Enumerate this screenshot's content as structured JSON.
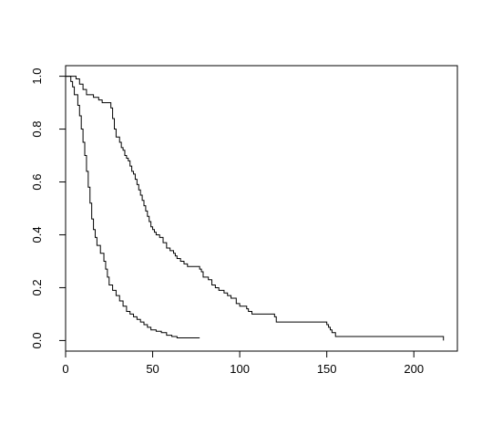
{
  "chart_data": {
    "type": "line",
    "title": "",
    "xlabel": "",
    "ylabel": "",
    "xlim": [
      0,
      225
    ],
    "ylim": [
      -0.04,
      1.04
    ],
    "x_ticks": [
      0,
      50,
      100,
      150,
      200
    ],
    "y_ticks": [
      0.0,
      0.2,
      0.4,
      0.6,
      0.8,
      1.0
    ],
    "x_tick_labels": [
      "0",
      "50",
      "100",
      "150",
      "200"
    ],
    "y_tick_labels": [
      "0.0",
      "0.2",
      "0.4",
      "0.6",
      "0.8",
      "1.0"
    ],
    "grid": false,
    "line_color": "#000000",
    "series": [
      {
        "step": true,
        "points": [
          [
            0,
            1.0
          ],
          [
            3,
            0.98
          ],
          [
            4,
            0.96
          ],
          [
            5,
            0.93
          ],
          [
            7,
            0.89
          ],
          [
            8,
            0.85
          ],
          [
            9,
            0.8
          ],
          [
            10,
            0.75
          ],
          [
            11,
            0.7
          ],
          [
            12,
            0.64
          ],
          [
            13,
            0.58
          ],
          [
            14,
            0.52
          ],
          [
            15,
            0.46
          ],
          [
            16,
            0.42
          ],
          [
            17,
            0.39
          ],
          [
            18,
            0.36
          ],
          [
            20,
            0.33
          ],
          [
            22,
            0.3
          ],
          [
            23,
            0.27
          ],
          [
            24,
            0.24
          ],
          [
            25,
            0.21
          ],
          [
            27,
            0.19
          ],
          [
            29,
            0.17
          ],
          [
            31,
            0.15
          ],
          [
            33,
            0.13
          ],
          [
            35,
            0.11
          ],
          [
            37,
            0.1
          ],
          [
            39,
            0.09
          ],
          [
            41,
            0.08
          ],
          [
            43,
            0.07
          ],
          [
            45,
            0.06
          ],
          [
            47,
            0.05
          ],
          [
            49,
            0.04
          ],
          [
            52,
            0.035
          ],
          [
            55,
            0.03
          ],
          [
            58,
            0.02
          ],
          [
            61,
            0.015
          ],
          [
            64,
            0.01
          ],
          [
            77,
            0.01
          ]
        ]
      },
      {
        "step": true,
        "points": [
          [
            0,
            1.0
          ],
          [
            6,
            0.99
          ],
          [
            8,
            0.97
          ],
          [
            10,
            0.95
          ],
          [
            12,
            0.93
          ],
          [
            16,
            0.92
          ],
          [
            19,
            0.91
          ],
          [
            21,
            0.9
          ],
          [
            26,
            0.88
          ],
          [
            27,
            0.84
          ],
          [
            28,
            0.8
          ],
          [
            29,
            0.77
          ],
          [
            31,
            0.75
          ],
          [
            32,
            0.73
          ],
          [
            33,
            0.72
          ],
          [
            34,
            0.7
          ],
          [
            35,
            0.69
          ],
          [
            36,
            0.68
          ],
          [
            37,
            0.66
          ],
          [
            38,
            0.64
          ],
          [
            39,
            0.63
          ],
          [
            40,
            0.61
          ],
          [
            41,
            0.59
          ],
          [
            42,
            0.57
          ],
          [
            43,
            0.55
          ],
          [
            44,
            0.53
          ],
          [
            45,
            0.51
          ],
          [
            46,
            0.49
          ],
          [
            47,
            0.47
          ],
          [
            48,
            0.45
          ],
          [
            49,
            0.43
          ],
          [
            50,
            0.42
          ],
          [
            51,
            0.41
          ],
          [
            52,
            0.4
          ],
          [
            54,
            0.39
          ],
          [
            56,
            0.37
          ],
          [
            58,
            0.35
          ],
          [
            60,
            0.34
          ],
          [
            62,
            0.33
          ],
          [
            63,
            0.32
          ],
          [
            64,
            0.31
          ],
          [
            66,
            0.3
          ],
          [
            68,
            0.29
          ],
          [
            70,
            0.28
          ],
          [
            77,
            0.27
          ],
          [
            78,
            0.26
          ],
          [
            79,
            0.24
          ],
          [
            82,
            0.23
          ],
          [
            84,
            0.21
          ],
          [
            86,
            0.2
          ],
          [
            88,
            0.19
          ],
          [
            91,
            0.18
          ],
          [
            93,
            0.17
          ],
          [
            95,
            0.16
          ],
          [
            98,
            0.14
          ],
          [
            100,
            0.13
          ],
          [
            104,
            0.12
          ],
          [
            105,
            0.11
          ],
          [
            107,
            0.1
          ],
          [
            120,
            0.09
          ],
          [
            121,
            0.07
          ],
          [
            150,
            0.06
          ],
          [
            151,
            0.05
          ],
          [
            152,
            0.04
          ],
          [
            153,
            0.03
          ],
          [
            155,
            0.015
          ],
          [
            217,
            0.015
          ],
          [
            217,
            0.0
          ]
        ]
      }
    ]
  }
}
